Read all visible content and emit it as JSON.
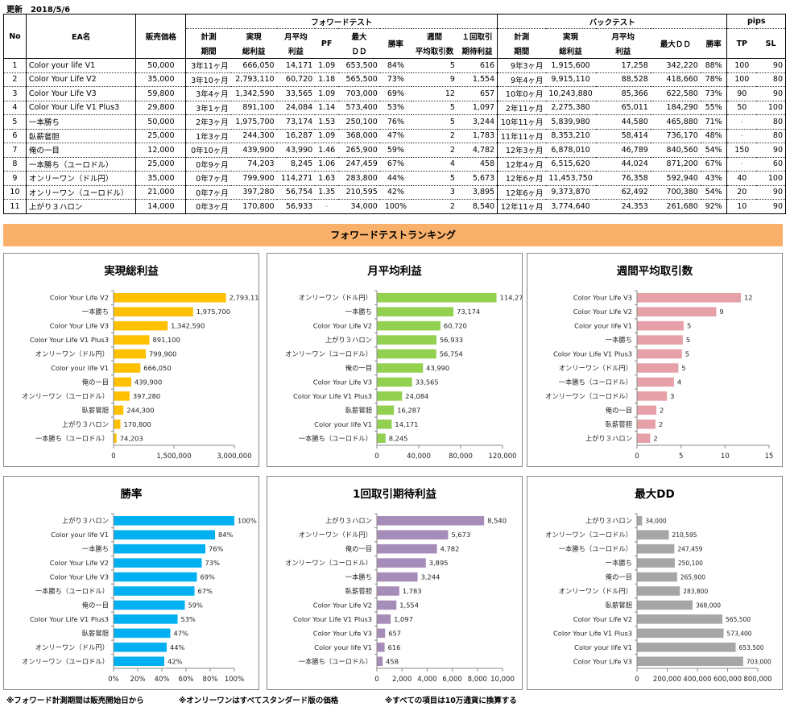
{
  "header": {
    "updated_label": "更新",
    "updated_date": "2018/5/6"
  },
  "table": {
    "group_headers": {
      "forward": "フォワードテスト",
      "backtest": "バックテスト",
      "pips": "pips"
    },
    "col_headers": {
      "no": "No",
      "ea": "EA名",
      "price": "販売価格",
      "fw_period": [
        "計測",
        "期間"
      ],
      "fw_total": [
        "実現",
        "総利益"
      ],
      "fw_monthly": [
        "月平均",
        "利益"
      ],
      "fw_pf": "PF",
      "fw_dd": [
        "最大",
        "ＤＤ"
      ],
      "fw_win": "勝率",
      "fw_weekly": [
        "週間",
        "平均取引数"
      ],
      "fw_expect": [
        "１回取引",
        "期待利益"
      ],
      "bt_period": [
        "計測",
        "期間"
      ],
      "bt_total": [
        "実現",
        "総利益"
      ],
      "bt_monthly": [
        "月平均",
        "利益"
      ],
      "bt_dd": "最大ＤＤ",
      "bt_win": "勝率",
      "tp": "TP",
      "sl": "SL"
    },
    "rows": [
      {
        "no": "1",
        "ea": "Color your life V1",
        "price": "50,000",
        "fw_period": "3年11ヶ月",
        "fw_total": "666,050",
        "fw_monthly": "14,171",
        "pf": "1.09",
        "fw_dd": "653,500",
        "fw_win": "84%",
        "weekly": "5",
        "expect": "616",
        "bt_period": "9年3ヶ月",
        "bt_total": "1,915,600",
        "bt_monthly": "17,258",
        "bt_dd": "342,220",
        "bt_win": "88%",
        "tp": "100",
        "sl": "90"
      },
      {
        "no": "2",
        "ea": "Color Your Life V2",
        "price": "35,000",
        "fw_period": "3年10ヶ月",
        "fw_total": "2,793,110",
        "fw_monthly": "60,720",
        "pf": "1.18",
        "fw_dd": "565,500",
        "fw_win": "73%",
        "weekly": "9",
        "expect": "1,554",
        "bt_period": "9年4ヶ月",
        "bt_total": "9,915,110",
        "bt_monthly": "88,528",
        "bt_dd": "418,660",
        "bt_win": "78%",
        "tp": "100",
        "sl": "80"
      },
      {
        "no": "3",
        "ea": "Color Your Life V3",
        "price": "59,800",
        "fw_period": "3年4ヶ月",
        "fw_total": "1,342,590",
        "fw_monthly": "33,565",
        "pf": "1.09",
        "fw_dd": "703,000",
        "fw_win": "69%",
        "weekly": "12",
        "expect": "657",
        "bt_period": "10年0ヶ月",
        "bt_total": "10,243,880",
        "bt_monthly": "85,366",
        "bt_dd": "622,580",
        "bt_win": "73%",
        "tp": "90",
        "sl": "90"
      },
      {
        "no": "4",
        "ea": "Color Your Life V1 Plus3",
        "price": "29,800",
        "fw_period": "3年1ヶ月",
        "fw_total": "891,100",
        "fw_monthly": "24,084",
        "pf": "1.14",
        "fw_dd": "573,400",
        "fw_win": "53%",
        "weekly": "5",
        "expect": "1,097",
        "bt_period": "2年11ヶ月",
        "bt_total": "2,275,380",
        "bt_monthly": "65,011",
        "bt_dd": "184,290",
        "bt_win": "55%",
        "tp": "50",
        "sl": "100"
      },
      {
        "no": "5",
        "ea": "一本勝ち",
        "price": "50,000",
        "fw_period": "2年3ヶ月",
        "fw_total": "1,975,700",
        "fw_monthly": "73,174",
        "pf": "1.53",
        "fw_dd": "250,100",
        "fw_win": "76%",
        "weekly": "5",
        "expect": "3,244",
        "bt_period": "10年11ヶ月",
        "bt_total": "5,839,980",
        "bt_monthly": "44,580",
        "bt_dd": "465,880",
        "bt_win": "71%",
        "tp": "-",
        "sl": "80"
      },
      {
        "no": "6",
        "ea": "臥薪嘗胆",
        "price": "25,000",
        "fw_period": "1年3ヶ月",
        "fw_total": "244,300",
        "fw_monthly": "16,287",
        "pf": "1.09",
        "fw_dd": "368,000",
        "fw_win": "47%",
        "weekly": "2",
        "expect": "1,783",
        "bt_period": "11年11ヶ月",
        "bt_total": "8,353,210",
        "bt_monthly": "58,414",
        "bt_dd": "736,170",
        "bt_win": "48%",
        "tp": "-",
        "sl": "80"
      },
      {
        "no": "7",
        "ea": "俺の一目",
        "price": "12,000",
        "fw_period": "0年10ヶ月",
        "fw_total": "439,900",
        "fw_monthly": "43,990",
        "pf": "1.46",
        "fw_dd": "265,900",
        "fw_win": "59%",
        "weekly": "2",
        "expect": "4,782",
        "bt_period": "12年3ヶ月",
        "bt_total": "6,878,010",
        "bt_monthly": "46,789",
        "bt_dd": "840,560",
        "bt_win": "54%",
        "tp": "150",
        "sl": "90"
      },
      {
        "no": "8",
        "ea": "一本勝ち（ユーロドル）",
        "price": "25,000",
        "fw_period": "0年9ヶ月",
        "fw_total": "74,203",
        "fw_monthly": "8,245",
        "pf": "1.06",
        "fw_dd": "247,459",
        "fw_win": "67%",
        "weekly": "4",
        "expect": "458",
        "bt_period": "12年4ヶ月",
        "bt_total": "6,515,620",
        "bt_monthly": "44,024",
        "bt_dd": "871,200",
        "bt_win": "67%",
        "tp": "-",
        "sl": "60"
      },
      {
        "no": "9",
        "ea": "オンリーワン（ドル円）",
        "price": "35,000",
        "fw_period": "0年7ヶ月",
        "fw_total": "799,900",
        "fw_monthly": "114,271",
        "pf": "1.63",
        "fw_dd": "283,800",
        "fw_win": "44%",
        "weekly": "5",
        "expect": "5,673",
        "bt_period": "12年6ヶ月",
        "bt_total": "11,453,750",
        "bt_monthly": "76,358",
        "bt_dd": "592,940",
        "bt_win": "43%",
        "tp": "40",
        "sl": "100"
      },
      {
        "no": "10",
        "ea": "オンリーワン（ユーロドル）",
        "price": "21,000",
        "fw_period": "0年7ヶ月",
        "fw_total": "397,280",
        "fw_monthly": "56,754",
        "pf": "1.35",
        "fw_dd": "210,595",
        "fw_win": "42%",
        "weekly": "3",
        "expect": "3,895",
        "bt_period": "12年6ヶ月",
        "bt_total": "9,373,870",
        "bt_monthly": "62,492",
        "bt_dd": "700,380",
        "bt_win": "54%",
        "tp": "20",
        "sl": "90"
      },
      {
        "no": "11",
        "ea": "上がり３ハロン",
        "price": "14,000",
        "fw_period": "0年3ヶ月",
        "fw_total": "170,800",
        "fw_monthly": "56,933",
        "pf": "-",
        "fw_dd": "34,000",
        "fw_win": "100%",
        "weekly": "2",
        "expect": "8,540",
        "bt_period": "12年11ヶ月",
        "bt_total": "3,774,640",
        "bt_monthly": "24,353",
        "bt_dd": "261,680",
        "bt_win": "92%",
        "tp": "10",
        "sl": "90"
      }
    ]
  },
  "banner": {
    "title": "フォワードテストランキング"
  },
  "footnotes": [
    "※フォワード計測期間は販売開始日から",
    "※オンリーワンはすべてスタンダード版の価格",
    "※すべての項目は10万通貨に換算する"
  ],
  "chart_data": [
    {
      "type": "bar",
      "orientation": "horizontal",
      "title": "実現総利益",
      "color": "#ffc000",
      "categories": [
        "Color Your Life V2",
        "一本勝ち",
        "Color Your Life V3",
        "Color Your Life V1 Plus3",
        "オンリーワン（ドル円）",
        "Color your life V1",
        "俺の一目",
        "オンリーワン（ユーロドル）",
        "臥薪嘗胆",
        "上がり３ハロン",
        "一本勝ち（ユーロドル）"
      ],
      "values": [
        2793110,
        1975700,
        1342590,
        891100,
        799900,
        666050,
        439900,
        397280,
        244300,
        170800,
        74203
      ],
      "labels": [
        "2,793,110",
        "1,975,700",
        "1,342,590",
        "891,100",
        "799,900",
        "666,050",
        "439,900",
        "397,280",
        "244,300",
        "170,800",
        "74,203"
      ],
      "xlim": [
        0,
        3000000
      ],
      "ticks": [
        "0",
        "1,500,000",
        "3,000,000"
      ],
      "tick_values": [
        0,
        1500000,
        3000000
      ],
      "grid": false,
      "legend": "none"
    },
    {
      "type": "bar",
      "orientation": "horizontal",
      "title": "月平均利益",
      "color": "#92d050",
      "categories": [
        "オンリーワン（ドル円）",
        "一本勝ち",
        "Color Your Life V2",
        "上がり３ハロン",
        "オンリーワン（ユーロドル）",
        "俺の一目",
        "Color Your Life V3",
        "Color Your Life V1 Plus3",
        "臥薪嘗胆",
        "Color your life V1",
        "一本勝ち（ユーロドル）"
      ],
      "values": [
        114271,
        73174,
        60720,
        56933,
        56754,
        43990,
        33565,
        24084,
        16287,
        14171,
        8245
      ],
      "labels": [
        "114,271",
        "73,174",
        "60,720",
        "56,933",
        "56,754",
        "43,990",
        "33,565",
        "24,084",
        "16,287",
        "14,171",
        "8,245"
      ],
      "xlim": [
        0,
        120000
      ],
      "ticks": [
        "0",
        "40,000",
        "80,000",
        "120,000"
      ],
      "tick_values": [
        0,
        40000,
        80000,
        120000
      ],
      "grid": false,
      "legend": "none"
    },
    {
      "type": "bar",
      "orientation": "horizontal",
      "title": "週間平均取引数",
      "color": "#e6a0a8",
      "categories": [
        "Color Your Life V3",
        "Color Your Life V2",
        "Color your life V1",
        "一本勝ち",
        "Color Your Life V1 Plus3",
        "オンリーワン（ドル円）",
        "一本勝ち（ユーロドル）",
        "オンリーワン（ユーロドル）",
        "俺の一目",
        "臥薪嘗胆",
        "上がり３ハロン"
      ],
      "values": [
        11.8,
        9.0,
        5.3,
        5.2,
        5.1,
        4.7,
        4.2,
        3.4,
        2.2,
        2.1,
        1.5
      ],
      "labels": [
        "12",
        "9",
        "5",
        "5",
        "5",
        "5",
        "4",
        "3",
        "2",
        "2",
        "2"
      ],
      "xlim": [
        0,
        15
      ],
      "ticks": [
        "0",
        "5",
        "10",
        "15"
      ],
      "tick_values": [
        0,
        5,
        10,
        15
      ],
      "grid": false,
      "legend": "none"
    },
    {
      "type": "bar",
      "orientation": "horizontal",
      "title": "勝率",
      "color": "#00b0f0",
      "categories": [
        "上がり３ハロン",
        "Color your life V1",
        "一本勝ち",
        "Color Your Life V2",
        "Color Your Life V3",
        "一本勝ち（ユーロドル）",
        "俺の一目",
        "Color Your Life V1 Plus3",
        "臥薪嘗胆",
        "オンリーワン（ドル円）",
        "オンリーワン（ユーロドル）"
      ],
      "values": [
        100,
        84,
        76,
        73,
        69,
        67,
        59,
        53,
        47,
        44,
        42
      ],
      "labels": [
        "100%",
        "84%",
        "76%",
        "73%",
        "69%",
        "67%",
        "59%",
        "53%",
        "47%",
        "44%",
        "42%"
      ],
      "xlim": [
        0,
        100
      ],
      "ticks": [
        "0%",
        "20%",
        "40%",
        "60%",
        "80%",
        "100%"
      ],
      "tick_values": [
        0,
        20,
        40,
        60,
        80,
        100
      ],
      "grid": false,
      "legend": "none"
    },
    {
      "type": "bar",
      "orientation": "horizontal",
      "title": "1回取引期待利益",
      "color": "#a68cb8",
      "categories": [
        "上がり３ハロン",
        "オンリーワン（ドル円）",
        "俺の一目",
        "オンリーワン（ユーロドル）",
        "一本勝ち",
        "臥薪嘗胆",
        "Color Your Life V2",
        "Color Your Life V1 Plus3",
        "Color Your Life V3",
        "Color your life V1",
        "一本勝ち（ユーロドル）"
      ],
      "values": [
        8540,
        5673,
        4782,
        3895,
        3244,
        1783,
        1554,
        1097,
        657,
        616,
        458
      ],
      "labels": [
        "8,540",
        "5,673",
        "4,782",
        "3,895",
        "3,244",
        "1,783",
        "1,554",
        "1,097",
        "657",
        "616",
        "458"
      ],
      "xlim": [
        0,
        10000
      ],
      "ticks": [
        "0",
        "2,000",
        "4,000",
        "6,000",
        "8,000",
        "10,000"
      ],
      "tick_values": [
        0,
        2000,
        4000,
        6000,
        8000,
        10000
      ],
      "grid": false,
      "legend": "none"
    },
    {
      "type": "bar",
      "orientation": "horizontal",
      "title": "最大DD",
      "color": "#a6a6a6",
      "categories": [
        "上がり３ハロン",
        "オンリーワン（ユーロドル）",
        "一本勝ち（ユーロドル）",
        "一本勝ち",
        "俺の一目",
        "オンリーワン（ドル円）",
        "臥薪嘗胆",
        "Color Your Life V2",
        "Color Your Life V1 Plus3",
        "Color your life V1",
        "Color Your Life V3"
      ],
      "values": [
        34000,
        210595,
        247459,
        250100,
        265900,
        283800,
        368000,
        565500,
        573400,
        653500,
        703000
      ],
      "labels": [
        "34,000",
        "210,595",
        "247,459",
        "250,100",
        "265,900",
        "283,800",
        "368,000",
        "565,500",
        "573,400",
        "653,500",
        "703,000"
      ],
      "xlim": [
        0,
        800000
      ],
      "ticks": [
        "0",
        "200,000",
        "400,000",
        "600,000",
        "800,000"
      ],
      "tick_values": [
        0,
        200000,
        400000,
        600000,
        800000
      ],
      "grid": false,
      "legend": "none"
    }
  ]
}
